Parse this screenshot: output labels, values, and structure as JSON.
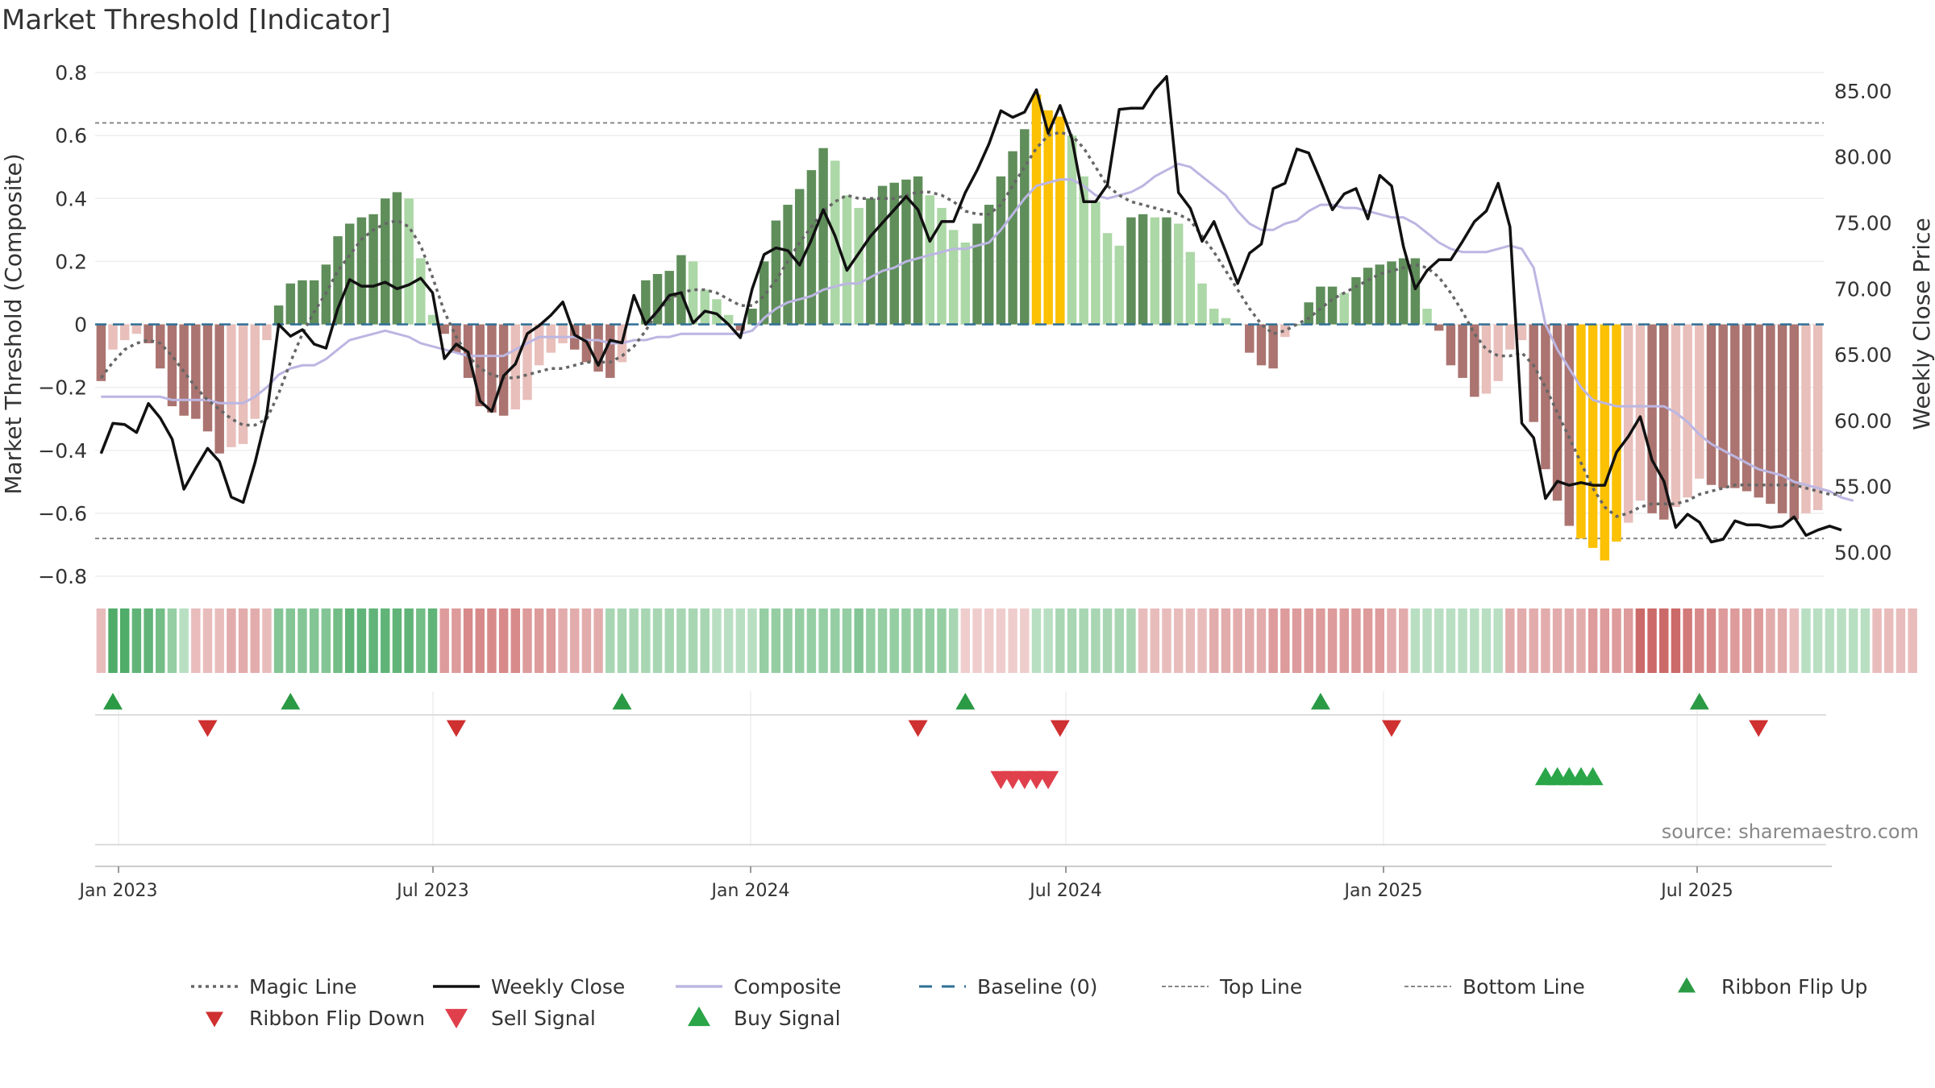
{
  "chart_data": {
    "type": "bar",
    "title": "Market Threshold [Indicator]",
    "ylabel": "Market Threshold (Composite)",
    "y2label": "Weekly Close Price",
    "ylim": [
      -0.8,
      0.8
    ],
    "y2lim": [
      48.2,
      86.4
    ],
    "yticks": [
      "0.8",
      "0.6",
      "0.4",
      "0.2",
      "0",
      "−0.2",
      "−0.4",
      "−0.6",
      "−0.8"
    ],
    "y2ticks": [
      "85.00",
      "80.00",
      "75.00",
      "70.00",
      "65.00",
      "60.00",
      "55.00",
      "50.00"
    ],
    "xticks": [
      "Jan 2023",
      "Jul 2023",
      "Jan 2024",
      "Jul 2024",
      "Jan 2025",
      "Jul 2025"
    ],
    "top_line": 0.64,
    "bottom_line": -0.68,
    "source": "source: sharemaestro.com",
    "composite_bars": [
      -0.18,
      -0.08,
      -0.05,
      -0.03,
      -0.06,
      -0.14,
      -0.26,
      -0.29,
      -0.3,
      -0.34,
      -0.41,
      -0.39,
      -0.38,
      -0.3,
      -0.05,
      0.06,
      0.13,
      0.14,
      0.14,
      0.19,
      0.28,
      0.32,
      0.34,
      0.35,
      0.4,
      0.42,
      0.4,
      0.21,
      0.03,
      -0.03,
      -0.09,
      -0.17,
      -0.26,
      -0.28,
      -0.29,
      -0.27,
      -0.24,
      -0.13,
      -0.09,
      -0.06,
      -0.08,
      -0.12,
      -0.15,
      -0.17,
      -0.12,
      0.0,
      0.14,
      0.16,
      0.17,
      0.22,
      0.2,
      0.11,
      0.08,
      0.03,
      -0.02,
      0.05,
      0.2,
      0.33,
      0.38,
      0.43,
      0.49,
      0.56,
      0.52,
      0.41,
      0.37,
      0.4,
      0.44,
      0.45,
      0.46,
      0.47,
      0.41,
      0.37,
      0.3,
      0.26,
      0.32,
      0.38,
      0.47,
      0.55,
      0.62,
      0.73,
      0.68,
      0.66,
      0.6,
      0.47,
      0.39,
      0.29,
      0.25,
      0.34,
      0.35,
      0.34,
      0.34,
      0.32,
      0.23,
      0.13,
      0.05,
      0.02,
      0.0,
      -0.09,
      -0.13,
      -0.14,
      -0.04,
      0.0,
      0.07,
      0.12,
      0.12,
      0.1,
      0.15,
      0.18,
      0.19,
      0.2,
      0.21,
      0.21,
      0.05,
      -0.02,
      -0.13,
      -0.17,
      -0.23,
      -0.22,
      -0.18,
      -0.08,
      -0.05,
      -0.31,
      -0.46,
      -0.56,
      -0.64,
      -0.68,
      -0.71,
      -0.75,
      -0.69,
      -0.63,
      -0.56,
      -0.6,
      -0.62,
      -0.58,
      -0.55,
      -0.49,
      -0.51,
      -0.52,
      -0.52,
      -0.53,
      -0.55,
      -0.57,
      -0.6,
      -0.62,
      -0.6,
      -0.59
    ],
    "weekly_close": [
      57.5,
      59.8,
      59.7,
      59.1,
      61.3,
      60.2,
      58.6,
      54.8,
      56.4,
      57.9,
      56.9,
      54.2,
      53.8,
      56.8,
      60.5,
      67.3,
      66.4,
      66.9,
      65.8,
      65.5,
      68.5,
      70.7,
      70.2,
      70.2,
      70.5,
      70.0,
      70.3,
      70.8,
      69.7,
      64.7,
      65.8,
      65.2,
      61.5,
      60.7,
      63.4,
      64.3,
      66.6,
      67.2,
      68.0,
      69.0,
      66.5,
      66.0,
      64.2,
      66.1,
      65.9,
      69.5,
      67.3,
      68.3,
      69.5,
      69.7,
      67.4,
      68.3,
      68.1,
      67.3,
      66.3,
      70.0,
      72.6,
      73.1,
      72.9,
      71.8,
      73.7,
      76.0,
      74.0,
      71.4,
      72.7,
      74.0,
      75.0,
      76.0,
      77.0,
      76.0,
      73.6,
      75.1,
      75.1,
      77.3,
      79.0,
      81.0,
      83.5,
      83.0,
      83.4,
      85.1,
      81.8,
      83.9,
      81.4,
      76.6,
      76.6,
      77.9,
      83.6,
      83.7,
      83.7,
      85.1,
      86.1,
      77.3,
      76.1,
      73.6,
      75.1,
      72.8,
      70.4,
      72.7,
      73.4,
      77.6,
      78.0,
      80.6,
      80.3,
      78.2,
      76.0,
      77.2,
      77.6,
      75.3,
      78.6,
      77.8,
      73.2,
      70.0,
      71.4,
      72.2,
      72.2,
      73.6,
      75.1,
      75.9,
      78.0,
      74.7,
      59.8,
      58.7,
      54.1,
      55.4,
      55.1,
      55.3,
      55.1,
      55.1,
      57.6,
      58.8,
      60.3,
      57.0,
      55.4,
      51.9,
      52.9,
      52.3,
      50.8,
      51.0,
      52.4,
      52.1,
      52.1,
      51.9,
      52.0,
      52.7,
      51.3,
      51.7,
      52.0,
      51.7
    ],
    "magic_line": [
      -0.17,
      -0.12,
      -0.08,
      -0.06,
      -0.05,
      -0.06,
      -0.1,
      -0.15,
      -0.2,
      -0.24,
      -0.27,
      -0.3,
      -0.32,
      -0.32,
      -0.3,
      -0.22,
      -0.12,
      -0.03,
      0.04,
      0.1,
      0.17,
      0.22,
      0.27,
      0.3,
      0.32,
      0.33,
      0.31,
      0.25,
      0.15,
      0.04,
      -0.04,
      -0.1,
      -0.14,
      -0.16,
      -0.17,
      -0.17,
      -0.16,
      -0.15,
      -0.14,
      -0.14,
      -0.13,
      -0.12,
      -0.12,
      -0.12,
      -0.1,
      -0.07,
      -0.02,
      0.04,
      0.08,
      0.1,
      0.11,
      0.11,
      0.1,
      0.08,
      0.06,
      0.06,
      0.09,
      0.14,
      0.2,
      0.26,
      0.31,
      0.36,
      0.39,
      0.41,
      0.4,
      0.4,
      0.4,
      0.4,
      0.41,
      0.42,
      0.42,
      0.41,
      0.39,
      0.36,
      0.35,
      0.35,
      0.38,
      0.44,
      0.5,
      0.56,
      0.6,
      0.61,
      0.6,
      0.56,
      0.5,
      0.44,
      0.41,
      0.39,
      0.38,
      0.37,
      0.36,
      0.35,
      0.33,
      0.28,
      0.23,
      0.17,
      0.11,
      0.05,
      0.0,
      -0.03,
      -0.02,
      0.0,
      0.02,
      0.05,
      0.08,
      0.1,
      0.12,
      0.14,
      0.16,
      0.17,
      0.18,
      0.19,
      0.18,
      0.15,
      0.1,
      0.04,
      -0.03,
      -0.08,
      -0.1,
      -0.1,
      -0.09,
      -0.13,
      -0.2,
      -0.28,
      -0.36,
      -0.44,
      -0.52,
      -0.58,
      -0.61,
      -0.6,
      -0.58,
      -0.57,
      -0.57,
      -0.57,
      -0.56,
      -0.54,
      -0.53,
      -0.52,
      -0.51,
      -0.51,
      -0.51,
      -0.51,
      -0.51,
      -0.51,
      -0.52,
      -0.53,
      -0.54,
      -0.54
    ],
    "composite_line": [
      -0.23,
      -0.23,
      -0.23,
      -0.23,
      -0.23,
      -0.23,
      -0.24,
      -0.24,
      -0.24,
      -0.24,
      -0.25,
      -0.25,
      -0.25,
      -0.23,
      -0.2,
      -0.16,
      -0.14,
      -0.13,
      -0.13,
      -0.11,
      -0.08,
      -0.05,
      -0.04,
      -0.03,
      -0.02,
      -0.03,
      -0.04,
      -0.06,
      -0.07,
      -0.08,
      -0.09,
      -0.1,
      -0.1,
      -0.1,
      -0.1,
      -0.08,
      -0.06,
      -0.04,
      -0.04,
      -0.04,
      -0.04,
      -0.05,
      -0.05,
      -0.06,
      -0.06,
      -0.05,
      -0.05,
      -0.04,
      -0.04,
      -0.03,
      -0.03,
      -0.03,
      -0.03,
      -0.03,
      -0.03,
      -0.02,
      0.02,
      0.05,
      0.07,
      0.08,
      0.09,
      0.11,
      0.12,
      0.13,
      0.13,
      0.15,
      0.17,
      0.18,
      0.2,
      0.21,
      0.22,
      0.23,
      0.24,
      0.24,
      0.25,
      0.26,
      0.3,
      0.35,
      0.4,
      0.44,
      0.45,
      0.46,
      0.46,
      0.44,
      0.41,
      0.4,
      0.41,
      0.42,
      0.44,
      0.47,
      0.49,
      0.51,
      0.5,
      0.47,
      0.44,
      0.41,
      0.36,
      0.32,
      0.3,
      0.3,
      0.32,
      0.33,
      0.36,
      0.38,
      0.38,
      0.37,
      0.37,
      0.36,
      0.35,
      0.34,
      0.34,
      0.32,
      0.29,
      0.26,
      0.24,
      0.23,
      0.23,
      0.23,
      0.24,
      0.25,
      0.24,
      0.18,
      0.0,
      -0.08,
      -0.14,
      -0.2,
      -0.24,
      -0.25,
      -0.26,
      -0.26,
      -0.26,
      -0.26,
      -0.26,
      -0.28,
      -0.31,
      -0.35,
      -0.38,
      -0.4,
      -0.42,
      -0.44,
      -0.46,
      -0.47,
      -0.48,
      -0.5,
      -0.51,
      -0.52,
      -0.53,
      -0.55,
      -0.56
    ],
    "ribbon_values": [
      -0.3,
      0.9,
      0.9,
      0.8,
      0.8,
      0.7,
      0.5,
      0.3,
      -0.3,
      -0.3,
      -0.3,
      -0.4,
      -0.4,
      -0.4,
      -0.3,
      0.6,
      0.6,
      0.6,
      0.6,
      0.6,
      0.7,
      0.8,
      0.8,
      0.8,
      0.8,
      0.8,
      0.8,
      0.7,
      0.8,
      -0.5,
      -0.5,
      -0.6,
      -0.6,
      -0.6,
      -0.6,
      -0.6,
      -0.5,
      -0.5,
      -0.5,
      -0.4,
      -0.4,
      -0.4,
      -0.4,
      0.4,
      0.4,
      0.4,
      0.4,
      0.4,
      0.4,
      0.4,
      0.4,
      0.4,
      0.3,
      0.3,
      0.3,
      0.3,
      0.5,
      0.5,
      0.5,
      0.5,
      0.5,
      0.5,
      0.5,
      0.5,
      0.6,
      0.5,
      0.5,
      0.5,
      0.5,
      0.5,
      0.5,
      0.5,
      0.4,
      -0.2,
      -0.2,
      -0.2,
      -0.2,
      -0.2,
      -0.2,
      0.3,
      0.3,
      0.4,
      0.4,
      0.4,
      0.4,
      0.4,
      0.4,
      0.4,
      -0.3,
      -0.3,
      -0.3,
      -0.3,
      -0.3,
      -0.3,
      -0.4,
      -0.4,
      -0.4,
      -0.4,
      -0.4,
      -0.5,
      -0.5,
      -0.5,
      -0.5,
      -0.5,
      -0.5,
      -0.5,
      -0.5,
      -0.5,
      -0.5,
      -0.4,
      -0.4,
      0.3,
      0.3,
      0.3,
      0.3,
      0.3,
      0.3,
      0.3,
      0.3,
      -0.4,
      -0.4,
      -0.4,
      -0.4,
      -0.4,
      -0.4,
      -0.4,
      -0.5,
      -0.5,
      -0.5,
      -0.5,
      -0.8,
      -0.8,
      -0.8,
      -0.8,
      -0.7,
      -0.6,
      -0.6,
      -0.5,
      -0.5,
      -0.5,
      -0.5,
      -0.4,
      -0.4,
      -0.3,
      0.3,
      0.3,
      0.3,
      0.3,
      0.3,
      0.3,
      -0.3,
      -0.3,
      -0.3,
      -0.3
    ],
    "ribbon_flip_up": [
      1,
      16,
      44,
      73,
      103,
      135
    ],
    "ribbon_flip_down": [
      9,
      30,
      69,
      81,
      109,
      140
    ],
    "sell_signals": [
      76,
      77,
      78,
      79,
      80
    ],
    "buy_signals": [
      122,
      123,
      124,
      125,
      126
    ],
    "legend": [
      "Magic Line",
      "Weekly Close",
      "Composite",
      "Baseline (0)",
      "Top Line",
      "Bottom Line",
      "Ribbon Flip Up",
      "Ribbon Flip Down",
      "Sell Signal",
      "Buy Signal"
    ],
    "colors": {
      "pos_dark": "#5f8e5a",
      "pos_light": "#acd7a6",
      "neg_dark": "#ab7470",
      "neg_light": "#e8bfbb",
      "extreme": "#fbc102",
      "weekly_close": "#111111",
      "magic_line": "#666666",
      "composite": "#bcb6e2",
      "baseline": "#2e6f96",
      "ref_lines": "#888888",
      "flip_up": "#2a9a45",
      "flip_down": "#cf3030",
      "sell": "#e0404c",
      "buy": "#2aa548"
    }
  }
}
